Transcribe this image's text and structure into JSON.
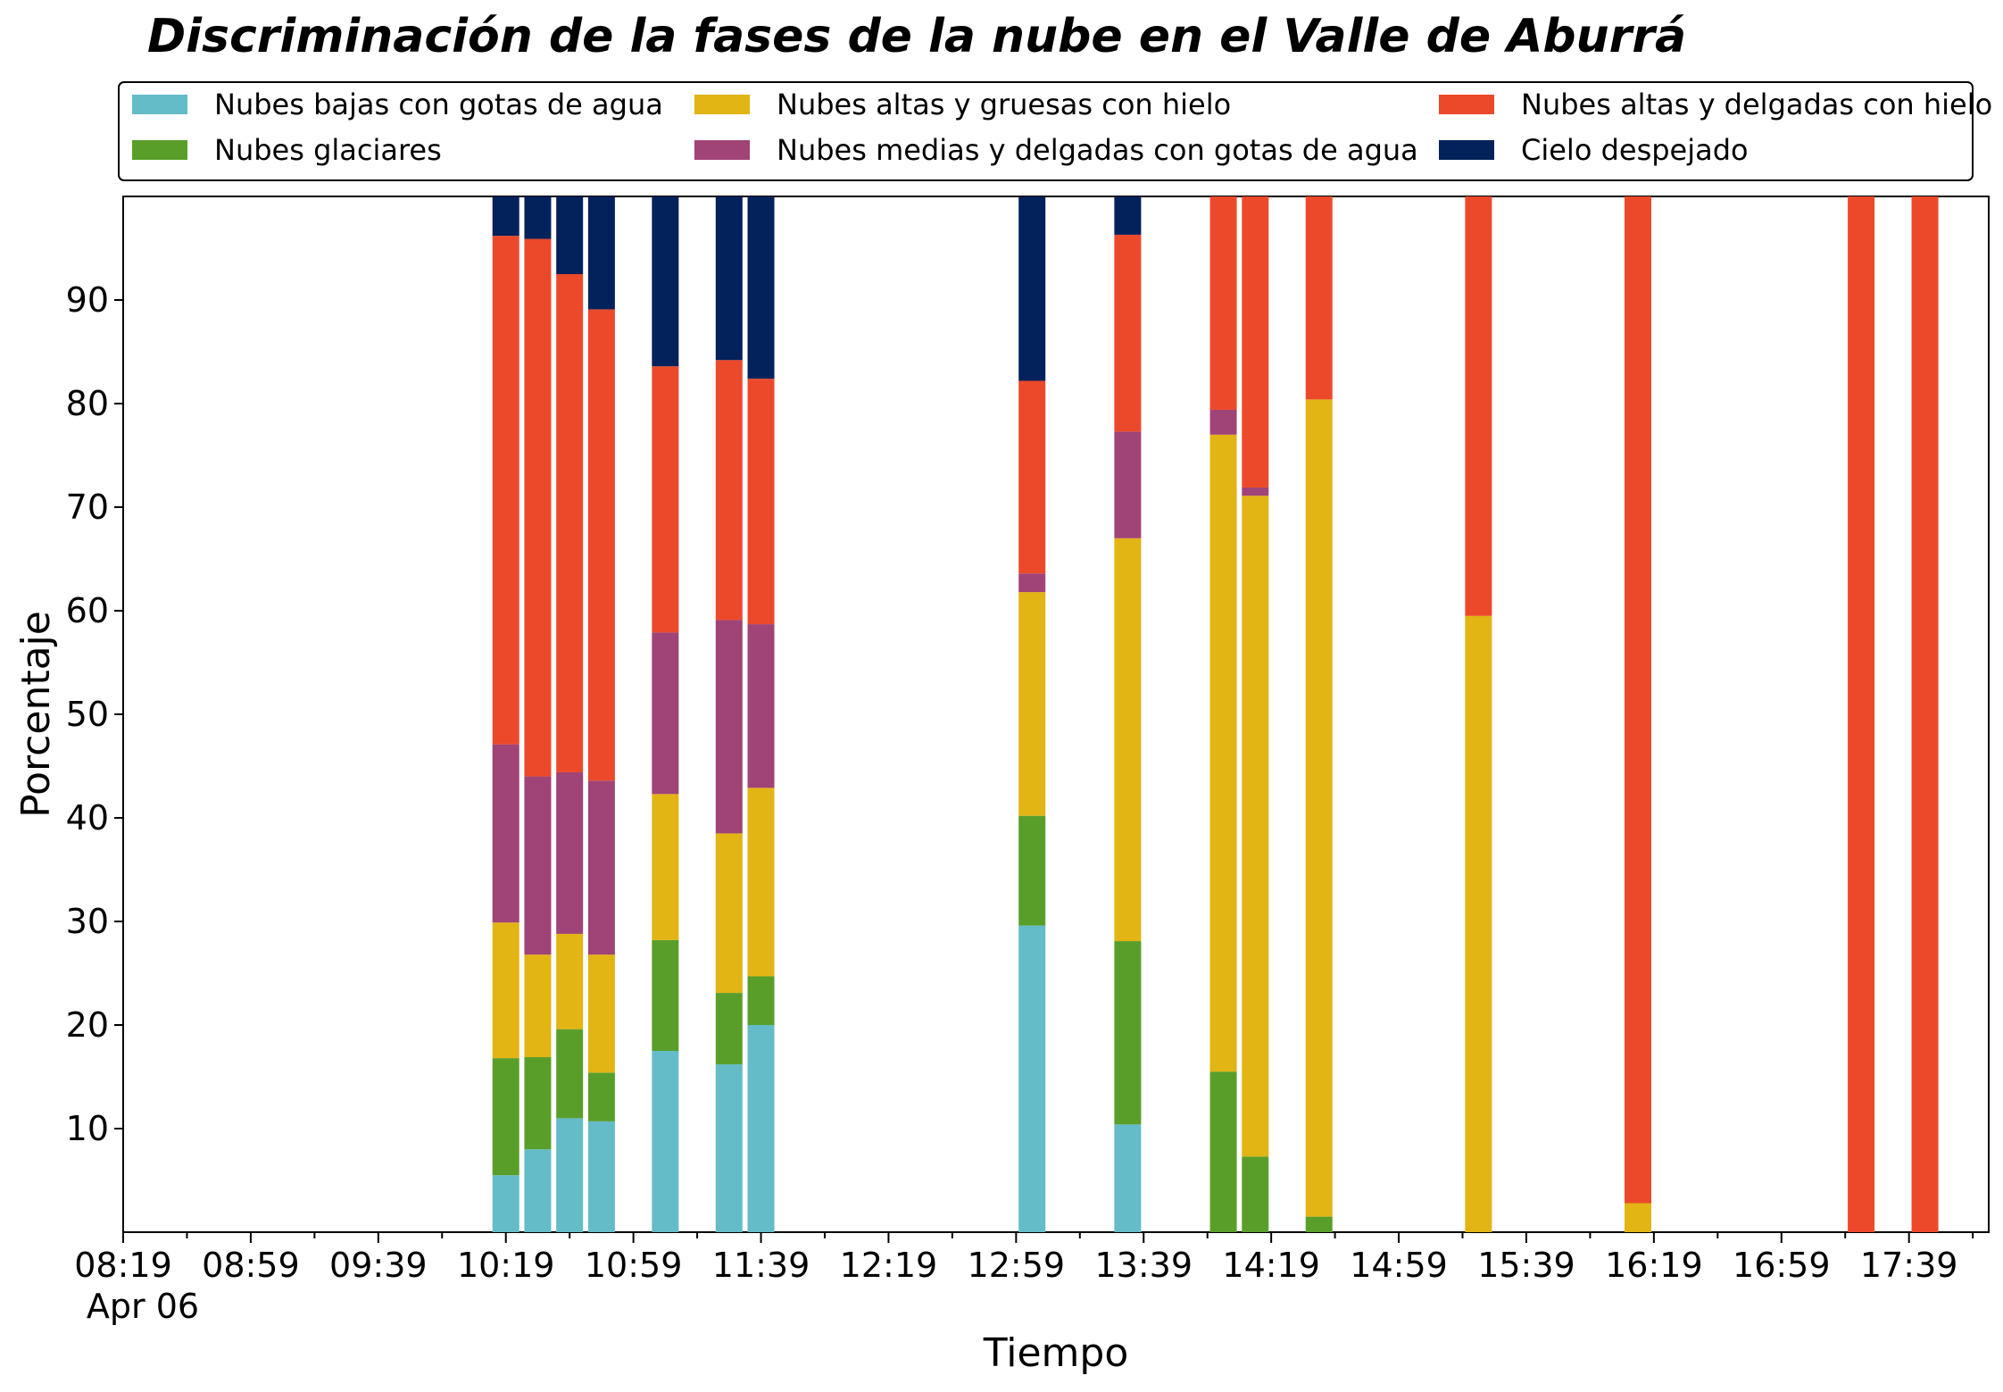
{
  "chart_data": {
    "type": "bar",
    "stacked": true,
    "title": "Discriminación de la fases de la nube en el Valle de Aburrá",
    "xlabel": "Tiempo",
    "ylabel": "Porcentaje",
    "ylim": [
      0,
      100
    ],
    "y_ticks": [
      10,
      20,
      30,
      40,
      50,
      60,
      70,
      80,
      90
    ],
    "x_range": [
      "08:19",
      "18:04"
    ],
    "x_ticks": [
      "08:19",
      "08:59",
      "09:39",
      "10:19",
      "10:59",
      "11:39",
      "12:19",
      "12:59",
      "13:39",
      "14:19",
      "14:59",
      "15:39",
      "16:19",
      "16:59",
      "17:39"
    ],
    "x_date_label": "Apr 06",
    "grid": false,
    "legend": {
      "placement": "top",
      "columns": 3
    },
    "x": [
      "10:19",
      "10:29",
      "10:39",
      "10:49",
      "11:09",
      "11:29",
      "11:39",
      "13:04",
      "13:34",
      "14:04",
      "14:14",
      "14:34",
      "15:24",
      "16:14",
      "17:24",
      "17:44"
    ],
    "series": [
      {
        "name": "Nubes bajas con gotas de agua",
        "color": "#63bcc7",
        "values": [
          5.5,
          8,
          11,
          10.7,
          17.5,
          16.2,
          20,
          29.6,
          10.4,
          0,
          0,
          0,
          0,
          0,
          0,
          0
        ]
      },
      {
        "name": "Nubes glaciares",
        "color": "#5a9e2a",
        "values": [
          11.3,
          8.9,
          8.6,
          4.7,
          10.7,
          6.9,
          4.7,
          10.6,
          17.7,
          15.5,
          7.3,
          1.5,
          0,
          0,
          0,
          0
        ]
      },
      {
        "name": "Nubes altas y gruesas con hielo",
        "color": "#e2b414",
        "values": [
          13.1,
          9.9,
          9.2,
          11.4,
          14.1,
          15.4,
          18.2,
          21.6,
          38.9,
          61.5,
          63.8,
          78.9,
          59.5,
          2.8,
          0,
          0
        ]
      },
      {
        "name": "Nubes medias y delgadas con gotas de agua",
        "color": "#a04376",
        "values": [
          17.2,
          17.2,
          15.6,
          16.8,
          15.6,
          20.6,
          15.8,
          1.8,
          10.3,
          2.4,
          0.8,
          0,
          0,
          0,
          0,
          0
        ]
      },
      {
        "name": "Nubes altas y delgadas con hielo",
        "color": "#ec492b",
        "values": [
          49.1,
          51.9,
          48.1,
          45.5,
          25.7,
          25.1,
          23.7,
          18.6,
          19.0,
          20.6,
          28.1,
          19.6,
          40.5,
          97.2,
          100,
          100
        ]
      },
      {
        "name": "Cielo despejado",
        "color": "#03215b",
        "values": [
          3.8,
          4.1,
          7.5,
          10.9,
          16.4,
          15.8,
          17.6,
          17.8,
          3.7,
          0,
          0,
          0,
          0,
          0,
          0,
          0
        ]
      }
    ]
  }
}
